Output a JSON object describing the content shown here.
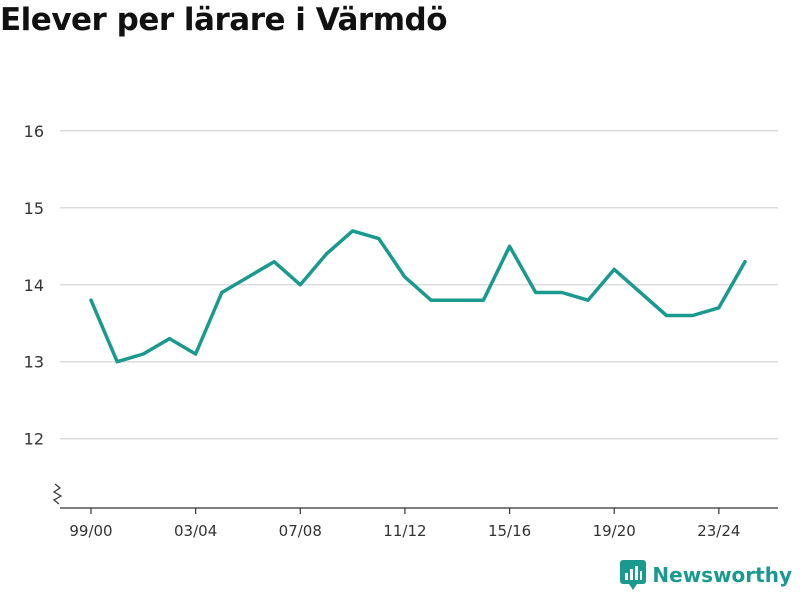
{
  "title": "Elever per lärare i Värmdö",
  "brand": {
    "name": "Newsworthy",
    "icon": "bar-chart-speech-bubble-icon",
    "color": "#1a9a8e"
  },
  "chart_data": {
    "type": "line",
    "title": "Elever per lärare i Värmdö",
    "xlabel": "",
    "ylabel": "",
    "ylim": [
      11.1,
      16.4
    ],
    "yticks": [
      12,
      13,
      14,
      15,
      16
    ],
    "y_axis_break": true,
    "grid": true,
    "line_color": "#1a9a8e",
    "x": [
      "99/00",
      "00/01",
      "01/02",
      "02/03",
      "03/04",
      "04/05",
      "05/06",
      "06/07",
      "07/08",
      "08/09",
      "09/10",
      "10/11",
      "11/12",
      "12/13",
      "13/14",
      "14/15",
      "15/16",
      "16/17",
      "17/18",
      "18/19",
      "19/20",
      "20/21",
      "21/22",
      "22/23",
      "23/24",
      "24/25"
    ],
    "xtick_labels": [
      "99/00",
      "03/04",
      "07/08",
      "11/12",
      "15/16",
      "19/20",
      "23/24"
    ],
    "series": [
      {
        "values": [
          13.8,
          13.0,
          13.1,
          13.3,
          13.1,
          13.9,
          14.1,
          14.3,
          14.0,
          14.4,
          14.7,
          14.6,
          14.1,
          13.8,
          13.8,
          13.8,
          14.5,
          13.9,
          13.9,
          13.8,
          14.2,
          13.9,
          13.6,
          13.6,
          13.7,
          14.3
        ]
      }
    ]
  }
}
